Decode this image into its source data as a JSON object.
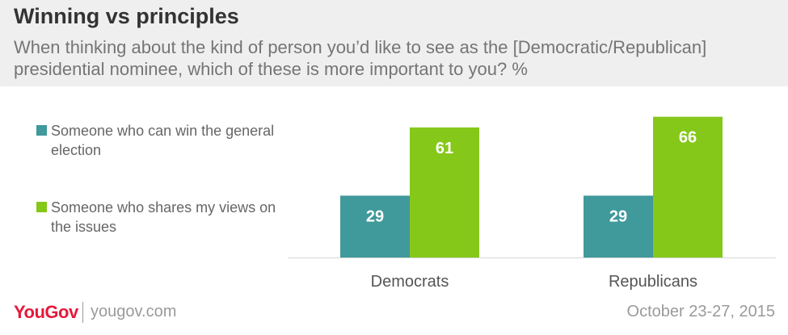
{
  "header": {
    "title": "Winning vs principles",
    "subtitle": "When thinking about the kind of person you’d like to see as the [Democratic/Republican] presidential nominee, which of these is more important to you? %"
  },
  "colors": {
    "win": "#40999b",
    "shares": "#85c81a",
    "header_bg": "#efefef",
    "brand": "#e5193b"
  },
  "chart_data": {
    "type": "bar",
    "categories": [
      "Democrats",
      "Republicans"
    ],
    "series": [
      {
        "name": "Someone who can win the general election",
        "values": [
          29,
          29
        ]
      },
      {
        "name": "Someone who shares my views on the issues",
        "values": [
          61,
          66
        ]
      }
    ],
    "ylim": [
      0,
      67
    ],
    "legend_position": "left",
    "grid": false
  },
  "footer": {
    "logo": "YouGov",
    "url": "yougov.com",
    "date": "October 23-27, 2015"
  }
}
